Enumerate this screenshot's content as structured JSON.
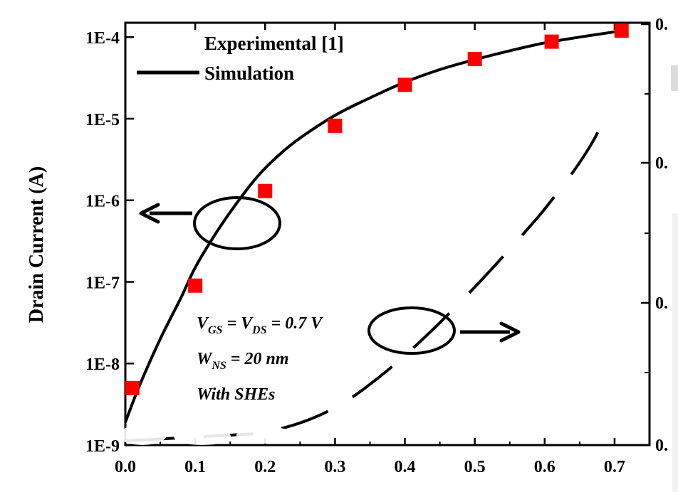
{
  "chart_data": {
    "type": "scatter",
    "title": "",
    "ylabel": "Drain Current (A)",
    "xlabel": "",
    "xlim": [
      0,
      0.75
    ],
    "ylim": [
      1e-09,
      0.00015
    ],
    "yscale": "log",
    "x_ticks": [
      "0.0",
      "0.1",
      "0.2",
      "0.3",
      "0.4",
      "0.5",
      "0.6",
      "0.7"
    ],
    "y_ticks": [
      "1E-9",
      "1E-8",
      "1E-7",
      "1E-6",
      "1E-5",
      "1E-4"
    ],
    "right_ticks": [
      "0.",
      "0.",
      "0.",
      "0."
    ],
    "legend_position": "top-center",
    "grid": false,
    "series": [
      {
        "name": "Experimental [1]",
        "marker": "square",
        "color": "#ff0000",
        "x": [
          0.01,
          0.1,
          0.2,
          0.3,
          0.4,
          0.5,
          0.61,
          0.71
        ],
        "y": [
          5e-09,
          9e-08,
          1.3e-06,
          8.2e-06,
          2.6e-05,
          5.4e-05,
          8.8e-05,
          0.00012
        ]
      },
      {
        "name": "Simulation",
        "style": "solid",
        "color": "#000000",
        "x": [
          0.0,
          0.02,
          0.05,
          0.08,
          0.1,
          0.13,
          0.16,
          0.19,
          0.22,
          0.25,
          0.3,
          0.35,
          0.4,
          0.45,
          0.5,
          0.55,
          0.6,
          0.65,
          0.7,
          0.715
        ],
        "y": [
          1.9e-09,
          5.3e-09,
          2e-08,
          6.5e-08,
          1.5e-07,
          4e-07,
          9.4e-07,
          2e-06,
          3.6e-06,
          5.8e-06,
          1.1e-05,
          1.8e-05,
          2.8e-05,
          4e-05,
          5.3e-05,
          6.8e-05,
          8.5e-05,
          0.0001,
          0.000116,
          0.00012
        ]
      }
    ],
    "annotations": {
      "line1_V1": "V",
      "line1_sub1": "GS",
      "line1_mid": " = V",
      "line1_sub2": "DS",
      "line1_rest": " = 0.7 V",
      "line2_W": "W",
      "line2_sub": "NS",
      "line2_rest": " = 20 nm",
      "line3": "With SHEs"
    }
  }
}
